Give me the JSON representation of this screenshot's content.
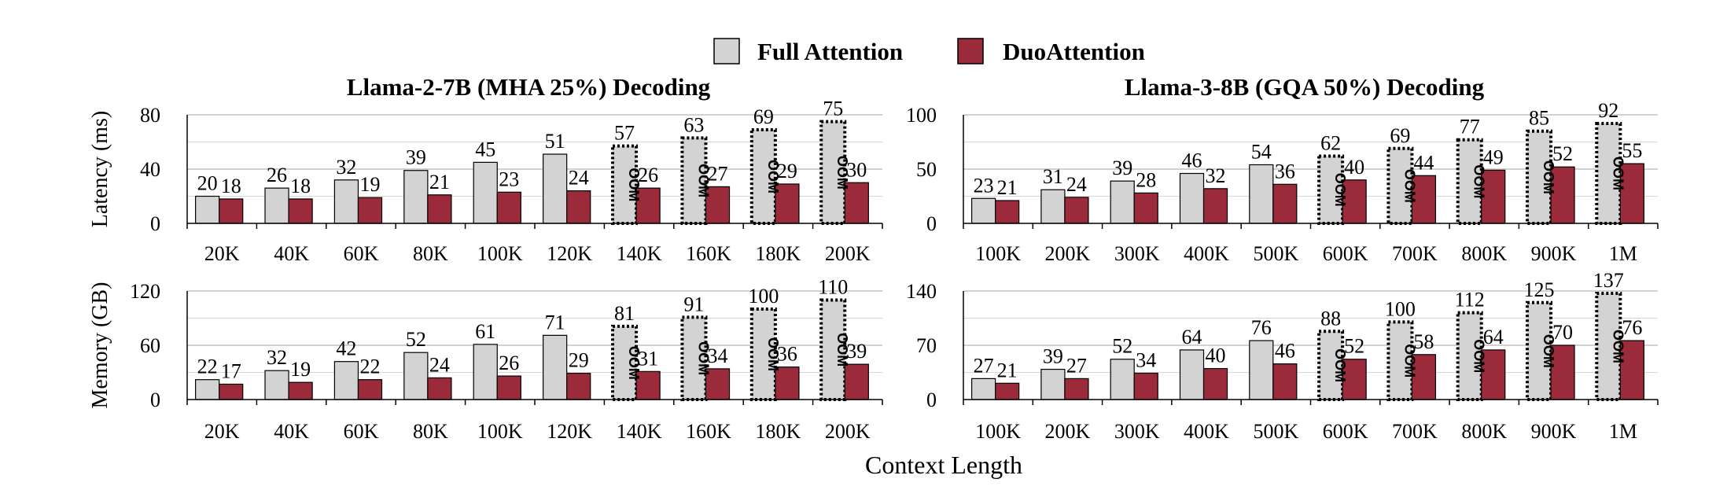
{
  "legend": {
    "items": [
      {
        "label": "Full Attention",
        "color": "#d3d3d3"
      },
      {
        "label": "DuoAttention",
        "color": "#9b2a3a"
      }
    ]
  },
  "xlabel": "Context Length",
  "oom_label": "OOM",
  "chart_data": [
    {
      "type": "bar",
      "title": "Llama-2-7B (MHA 25%) Decoding",
      "ylabel": "Latency (ms)",
      "yticks": [
        0,
        40,
        80
      ],
      "ylim": [
        0,
        80
      ],
      "categories": [
        "20K",
        "40K",
        "60K",
        "80K",
        "100K",
        "120K",
        "140K",
        "160K",
        "180K",
        "200K"
      ],
      "series": [
        {
          "name": "Full Attention",
          "values": [
            20,
            26,
            32,
            39,
            45,
            51,
            57,
            63,
            69,
            75
          ]
        },
        {
          "name": "DuoAttention",
          "values": [
            18,
            18,
            19,
            21,
            23,
            24,
            26,
            27,
            29,
            30
          ]
        }
      ],
      "oom": [
        false,
        false,
        false,
        false,
        false,
        false,
        true,
        true,
        true,
        true
      ]
    },
    {
      "type": "bar",
      "title": "Llama-3-8B (GQA 50%) Decoding",
      "ylabel": "",
      "yticks": [
        0,
        50,
        100
      ],
      "ylim": [
        0,
        100
      ],
      "categories": [
        "100K",
        "200K",
        "300K",
        "400K",
        "500K",
        "600K",
        "700K",
        "800K",
        "900K",
        "1M"
      ],
      "series": [
        {
          "name": "Full Attention",
          "values": [
            23,
            31,
            39,
            46,
            54,
            62,
            69,
            77,
            85,
            92
          ]
        },
        {
          "name": "DuoAttention",
          "values": [
            21,
            24,
            28,
            32,
            36,
            40,
            44,
            49,
            52,
            55
          ]
        }
      ],
      "oom": [
        false,
        false,
        false,
        false,
        false,
        true,
        true,
        true,
        true,
        true
      ]
    },
    {
      "type": "bar",
      "title": "",
      "ylabel": "Memory (GB)",
      "yticks": [
        0,
        60,
        120
      ],
      "ylim": [
        0,
        120
      ],
      "categories": [
        "20K",
        "40K",
        "60K",
        "80K",
        "100K",
        "120K",
        "140K",
        "160K",
        "180K",
        "200K"
      ],
      "series": [
        {
          "name": "Full Attention",
          "values": [
            22,
            32,
            42,
            52,
            61,
            71,
            81,
            91,
            100,
            110
          ]
        },
        {
          "name": "DuoAttention",
          "values": [
            17,
            19,
            22,
            24,
            26,
            29,
            31,
            34,
            36,
            39
          ]
        }
      ],
      "oom": [
        false,
        false,
        false,
        false,
        false,
        false,
        true,
        true,
        true,
        true
      ]
    },
    {
      "type": "bar",
      "title": "",
      "ylabel": "",
      "yticks": [
        0,
        70,
        140
      ],
      "ylim": [
        0,
        140
      ],
      "categories": [
        "100K",
        "200K",
        "300K",
        "400K",
        "500K",
        "600K",
        "700K",
        "800K",
        "900K",
        "1M"
      ],
      "series": [
        {
          "name": "Full Attention",
          "values": [
            27,
            39,
            52,
            64,
            76,
            88,
            100,
            112,
            125,
            137
          ]
        },
        {
          "name": "DuoAttention",
          "values": [
            21,
            27,
            34,
            40,
            46,
            52,
            58,
            64,
            70,
            76
          ]
        }
      ],
      "oom": [
        false,
        false,
        false,
        false,
        false,
        true,
        true,
        true,
        true,
        true
      ]
    }
  ]
}
